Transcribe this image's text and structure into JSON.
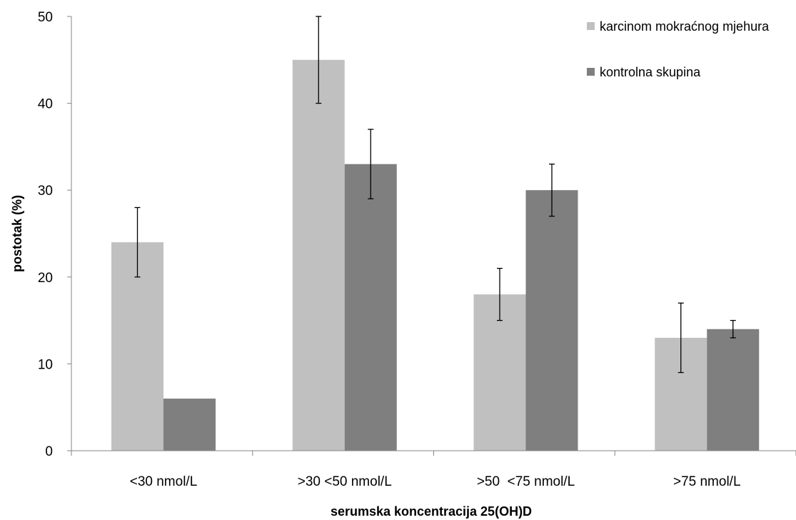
{
  "chart_data": {
    "type": "bar",
    "title": "",
    "xlabel": "serumska koncentracija 25(OH)D",
    "ylabel": "postotak (%)",
    "ylim": [
      0,
      50
    ],
    "yticks": [
      0,
      10,
      20,
      30,
      40,
      50
    ],
    "grid": false,
    "legend_position": "top-right",
    "categories": [
      "<30 nmol/L",
      ">30 <50 nmol/L",
      ">50  <75 nmol/L",
      ">75 nmol/L"
    ],
    "series": [
      {
        "name": "karcinom mokraćnog mjehura",
        "color": "#c0c0c0",
        "values": [
          24,
          45,
          18,
          13
        ],
        "error_low": [
          20,
          40,
          15,
          9
        ],
        "error_high": [
          28,
          50,
          21,
          17
        ]
      },
      {
        "name": "kontrolna skupina",
        "color": "#7f7f7f",
        "values": [
          6,
          33,
          30,
          14
        ],
        "error_low": [
          null,
          29,
          27,
          13
        ],
        "error_high": [
          null,
          37,
          33,
          15
        ]
      }
    ]
  }
}
